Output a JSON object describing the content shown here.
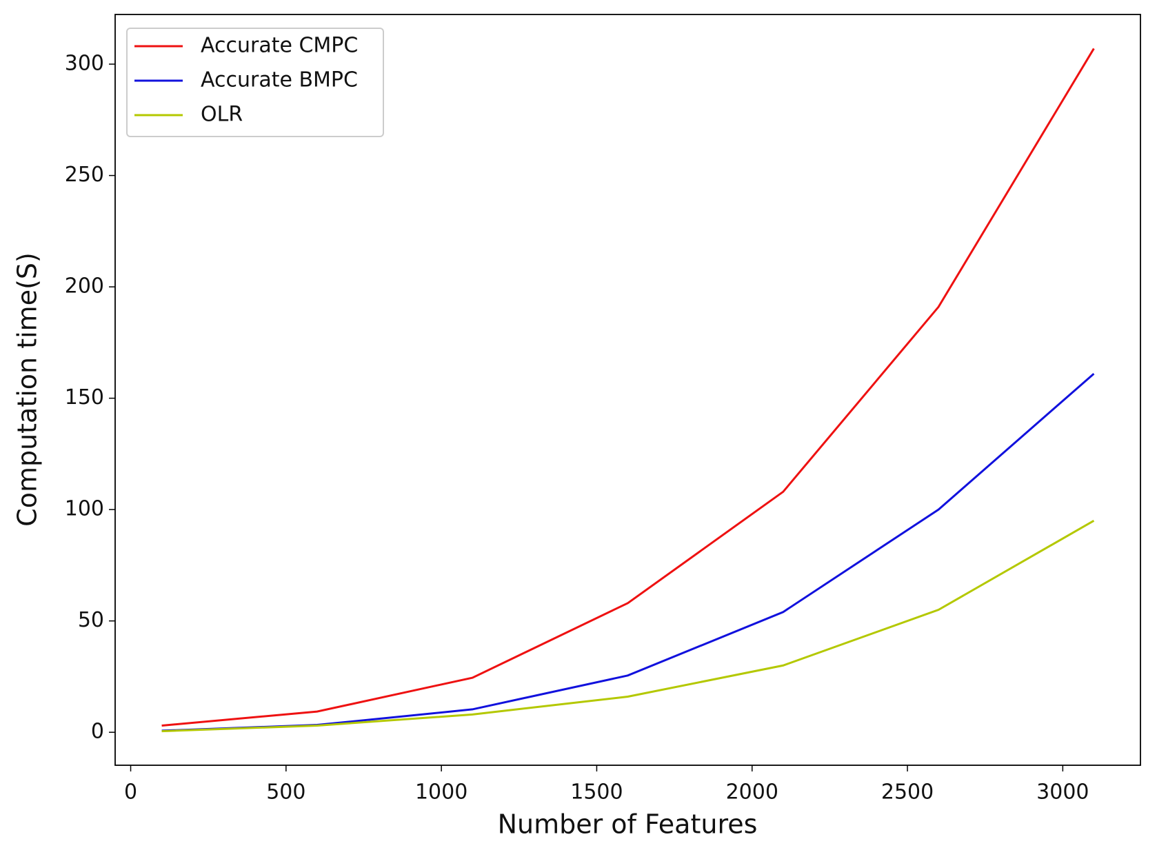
{
  "chart_data": {
    "type": "line",
    "xlabel": "Number of Features",
    "ylabel": "Computation time(S)",
    "x": [
      100,
      600,
      1100,
      1600,
      2100,
      2600,
      3100
    ],
    "series": [
      {
        "name": "Accurate CMPC",
        "color": "#ee1111",
        "values": [
          3,
          9.3,
          24.5,
          58,
          108,
          191,
          307
        ]
      },
      {
        "name": "Accurate BMPC",
        "color": "#1111dd",
        "values": [
          0.7,
          3.3,
          10.3,
          25.5,
          54,
          100,
          161
        ]
      },
      {
        "name": "OLR",
        "color": "#b4c800",
        "values": [
          0.5,
          3,
          8,
          16,
          30,
          55,
          95
        ]
      }
    ],
    "xlim": [
      -50,
      3250
    ],
    "xticks": [
      0,
      500,
      1000,
      1500,
      2000,
      2500,
      3000
    ],
    "ylim": [
      -14.8,
      322.3
    ],
    "yticks": [
      0,
      50,
      100,
      150,
      200,
      250,
      300
    ],
    "legend": "upper-left"
  }
}
